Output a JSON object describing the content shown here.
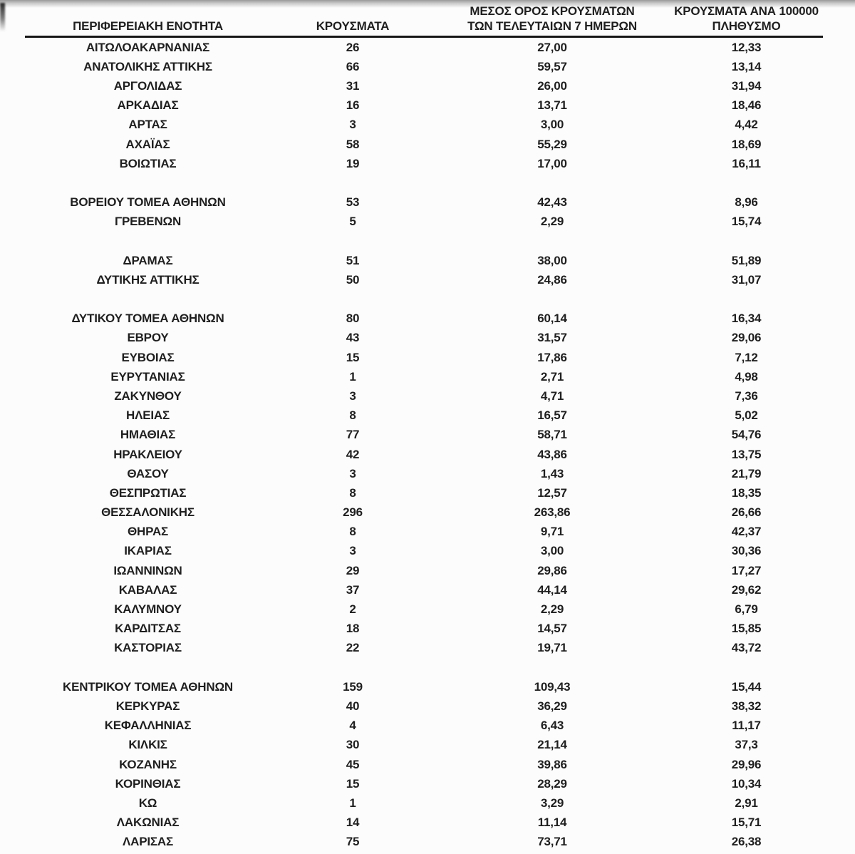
{
  "document": {
    "kind": "regional-cases-table",
    "language": "el"
  },
  "colors": {
    "background": "#fcfcfc",
    "text": "#1f1f1f",
    "header_rule": "#161616",
    "top_shade": "#9a9a9a"
  },
  "table": {
    "header": {
      "col1": "ΠΕΡΙΦΕΡΕΙΑΚΗ ΕΝΟΤΗΤΑ",
      "col2": "ΚΡΟΥΣΜΑΤΑ",
      "col3_line1": "ΜΕΣΟΣ ΟΡΟΣ ΚΡΟΥΣΜΑΤΩΝ",
      "col3_line2": "ΤΩΝ ΤΕΛΕΥΤΑΙΩΝ 7 ΗΜΕΡΩΝ",
      "col4_line1": "ΚΡΟΥΣΜΑΤΑ ΑΝΑ 100000",
      "col4_line2": "ΠΛΗΘΥΣΜΟ"
    },
    "columns": [
      "ΠΕΡΙΦΕΡΕΙΑΚΗ ΕΝΟΤΗΤΑ",
      "ΚΡΟΥΣΜΑΤΑ",
      "ΜΕΣΟΣ ΟΡΟΣ ΚΡΟΥΣΜΑΤΩΝ ΤΩΝ ΤΕΛΕΥΤΑΙΩΝ 7 ΗΜΕΡΩΝ",
      "ΚΡΟΥΣΜΑΤΑ ΑΝΑ 100000 ΠΛΗΘΥΣΜΟ"
    ],
    "groups": [
      {
        "rows": [
          [
            "ΑΙΤΩΛΟΑΚΑΡΝΑΝΙΑΣ",
            "26",
            "27,00",
            "12,33"
          ],
          [
            "ΑΝΑΤΟΛΙΚΗΣ ΑΤΤΙΚΗΣ",
            "66",
            "59,57",
            "13,14"
          ],
          [
            "ΑΡΓΟΛΙΔΑΣ",
            "31",
            "26,00",
            "31,94"
          ],
          [
            "ΑΡΚΑΔΙΑΣ",
            "16",
            "13,71",
            "18,46"
          ],
          [
            "ΑΡΤΑΣ",
            "3",
            "3,00",
            "4,42"
          ],
          [
            "ΑΧΑΪΑΣ",
            "58",
            "55,29",
            "18,69"
          ],
          [
            "ΒΟΙΩΤΙΑΣ",
            "19",
            "17,00",
            "16,11"
          ]
        ]
      },
      {
        "rows": [
          [
            "ΒΟΡΕΙΟΥ ΤΟΜΕΑ ΑΘΗΝΩΝ",
            "53",
            "42,43",
            "8,96"
          ],
          [
            "ΓΡΕΒΕΝΩΝ",
            "5",
            "2,29",
            "15,74"
          ]
        ]
      },
      {
        "rows": [
          [
            "ΔΡΑΜΑΣ",
            "51",
            "38,00",
            "51,89"
          ],
          [
            "ΔΥΤΙΚΗΣ ΑΤΤΙΚΗΣ",
            "50",
            "24,86",
            "31,07"
          ]
        ]
      },
      {
        "rows": [
          [
            "ΔΥΤΙΚΟΥ ΤΟΜΕΑ ΑΘΗΝΩΝ",
            "80",
            "60,14",
            "16,34"
          ],
          [
            "ΕΒΡΟΥ",
            "43",
            "31,57",
            "29,06"
          ],
          [
            "ΕΥΒΟΙΑΣ",
            "15",
            "17,86",
            "7,12"
          ],
          [
            "ΕΥΡΥΤΑΝΙΑΣ",
            "1",
            "2,71",
            "4,98"
          ],
          [
            "ΖΑΚΥΝΘΟΥ",
            "3",
            "4,71",
            "7,36"
          ],
          [
            "ΗΛΕΙΑΣ",
            "8",
            "16,57",
            "5,02"
          ],
          [
            "ΗΜΑΘΙΑΣ",
            "77",
            "58,71",
            "54,76"
          ],
          [
            "ΗΡΑΚΛΕΙΟΥ",
            "42",
            "43,86",
            "13,75"
          ],
          [
            "ΘΑΣΟΥ",
            "3",
            "1,43",
            "21,79"
          ],
          [
            "ΘΕΣΠΡΩΤΙΑΣ",
            "8",
            "12,57",
            "18,35"
          ],
          [
            "ΘΕΣΣΑΛΟΝΙΚΗΣ",
            "296",
            "263,86",
            "26,66"
          ],
          [
            "ΘΗΡΑΣ",
            "8",
            "9,71",
            "42,37"
          ],
          [
            "ΙΚΑΡΙΑΣ",
            "3",
            "3,00",
            "30,36"
          ],
          [
            "ΙΩΑΝΝΙΝΩΝ",
            "29",
            "29,86",
            "17,27"
          ],
          [
            "ΚΑΒΑΛΑΣ",
            "37",
            "44,14",
            "29,62"
          ],
          [
            "ΚΑΛΥΜΝΟΥ",
            "2",
            "2,29",
            "6,79"
          ],
          [
            "ΚΑΡΔΙΤΣΑΣ",
            "18",
            "14,57",
            "15,85"
          ],
          [
            "ΚΑΣΤΟΡΙΑΣ",
            "22",
            "19,71",
            "43,72"
          ]
        ]
      },
      {
        "rows": [
          [
            "ΚΕΝΤΡΙΚΟΥ ΤΟΜΕΑ ΑΘΗΝΩΝ",
            "159",
            "109,43",
            "15,44"
          ],
          [
            "ΚΕΡΚΥΡΑΣ",
            "40",
            "36,29",
            "38,32"
          ],
          [
            "ΚΕΦΑΛΛΗΝΙΑΣ",
            "4",
            "6,43",
            "11,17"
          ],
          [
            "ΚΙΛΚΙΣ",
            "30",
            "21,14",
            "37,3"
          ],
          [
            "ΚΟΖΑΝΗΣ",
            "45",
            "39,86",
            "29,96"
          ],
          [
            "ΚΟΡΙΝΘΙΑΣ",
            "15",
            "28,29",
            "10,34"
          ],
          [
            "ΚΩ",
            "1",
            "3,29",
            "2,91"
          ],
          [
            "ΛΑΚΩΝΙΑΣ",
            "14",
            "11,14",
            "15,71"
          ],
          [
            "ΛΑΡΙΣΑΣ",
            "75",
            "73,71",
            "26,38"
          ]
        ]
      }
    ]
  }
}
